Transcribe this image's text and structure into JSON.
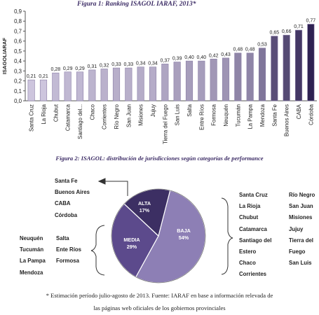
{
  "figure1": {
    "title": "Figura 1: Ranking ISAGOL IARAF, 2013*"
  },
  "figure2": {
    "title": "Figura 2: ISAGOL: distribución de jurisdicciones según categorías de performance"
  },
  "chart_data": [
    {
      "type": "bar",
      "title": "Figura 1: Ranking ISAGOL IARAF, 2013*",
      "ylabel": "ISAGOLIARAF",
      "xlabel": "",
      "ylim": [
        0,
        0.9
      ],
      "yticks": [
        "0,0",
        "0,1",
        "0,2",
        "0,3",
        "0,4",
        "0,5",
        "0,6",
        "0,7",
        "0,8",
        "0,9"
      ],
      "grid": false,
      "categories": [
        "Santa Cruz",
        "La Rioja",
        "Chubut",
        "Catamarca",
        "Santiago del...",
        "Chaco",
        "Corrientes",
        "Río Negro",
        "San Juan",
        "Misiones",
        "Jujuy",
        "Tierra del Fuego",
        "San Luis",
        "Salta",
        "Entre Ríos",
        "Formosa",
        "Neuquén",
        "Tucumán",
        "La Pampa",
        "Mendoza",
        "Santa Fe",
        "Buenos Aires",
        "CABA",
        "Córdoba"
      ],
      "values": [
        0.21,
        0.21,
        0.28,
        0.29,
        0.29,
        0.31,
        0.32,
        0.33,
        0.33,
        0.34,
        0.34,
        0.37,
        0.39,
        0.4,
        0.4,
        0.42,
        0.43,
        0.48,
        0.48,
        0.53,
        0.65,
        0.66,
        0.71,
        0.77
      ],
      "value_labels": [
        "0,21",
        "0,21",
        "0,28",
        "0,29",
        "0,29",
        "0,31",
        "0,32",
        "0,33",
        "0,33",
        "0,34",
        "0,34",
        "0,37",
        "0,39",
        "0,40",
        "0,40",
        "0,42",
        "0,43",
        "0,48",
        "0,48",
        "0,53",
        "0,65",
        "0,66",
        "0,71",
        "0,77"
      ],
      "colors": {
        "light": "#cdc5dd",
        "dark": "#2e2152",
        "edge": "#8c80a8"
      }
    },
    {
      "type": "pie",
      "title": "Figura 2: ISAGOL: distribución de jurisdicciones según categorías de performance",
      "slices": [
        {
          "label": "BAJA",
          "value": 54,
          "value_label": "54%",
          "color": "#8d7fb5"
        },
        {
          "label": "MEDIA",
          "value": 29,
          "value_label": "29%",
          "color": "#5c4a8c"
        },
        {
          "label": "ALTA",
          "value": 17,
          "value_label": "17%",
          "color": "#3c2f63"
        }
      ]
    }
  ],
  "groups": {
    "alta": [
      "Santa Fe",
      "Buenos Aires",
      "CABA",
      "Córdoba"
    ],
    "media_left": [
      "Neuquén",
      "Tucumán",
      "La Pampa",
      "Mendoza"
    ],
    "media_right": [
      "Salta",
      "Ente Ríos",
      "Formosa"
    ],
    "baja_col1": [
      "Santa Cruz",
      "La Rioja",
      "Chubut",
      "Catamarca",
      "Santiago del",
      "Estero",
      "Chaco",
      "Corrientes"
    ],
    "baja_col2": [
      "Río Negro",
      "San Juan",
      "Misiones",
      "Jujuy",
      "Tierra del",
      "Fuego",
      "San Luis"
    ]
  },
  "footnote": {
    "line1": "* Estimación período julio-agosto de 2013. Fuente: IARAF en base a información relevada de",
    "line2": "las páginas web oficiales de los gobiernos provinciales"
  }
}
